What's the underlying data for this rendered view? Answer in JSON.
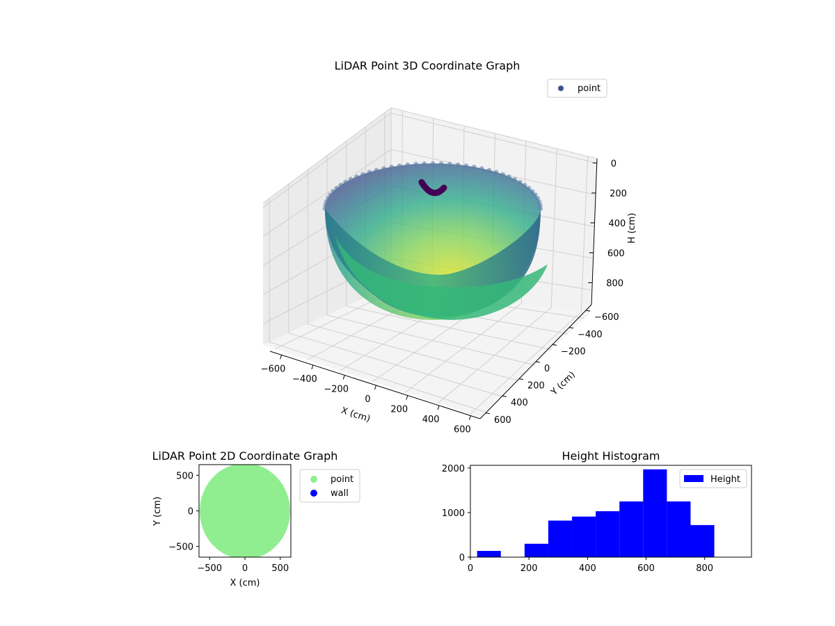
{
  "chart_data": [
    {
      "type": "scatter",
      "projection": "3d",
      "title": "LiDAR Point 3D Coordinate Graph",
      "xlabel": "X (cm)",
      "ylabel": "Y (cm)",
      "zlabel": "H (cm)",
      "xlim": [
        -650,
        650
      ],
      "ylim": [
        -650,
        650
      ],
      "zlim": [
        950,
        0
      ],
      "z_inverted": true,
      "xticks": [
        "−600",
        "−400",
        "−200",
        "0",
        "200",
        "400",
        "600"
      ],
      "yticks": [
        "−600",
        "−400",
        "−200",
        "0",
        "200",
        "400",
        "600"
      ],
      "zticks": [
        "0",
        "200",
        "400",
        "600",
        "800"
      ],
      "colormap": "viridis",
      "legend": {
        "entries": [
          "point"
        ],
        "placement": "top-right",
        "marker_color": "#3b528b"
      },
      "grid": true,
      "shape": "hemispherical bowl of points (radius ≈ 600 cm, depth ≈ 800 cm) with a small dark arc near the top rim"
    },
    {
      "type": "scatter",
      "title": "LiDAR Point 2D Coordinate Graph",
      "xlabel": "X (cm)",
      "ylabel": "Y (cm)",
      "xlim": [
        -650,
        650
      ],
      "ylim": [
        -650,
        650
      ],
      "xticks": [
        "−500",
        "0",
        "500"
      ],
      "yticks": [
        "−500",
        "0",
        "500"
      ],
      "series": [
        {
          "name": "point",
          "color": "#90ee90",
          "shape": "filled disk",
          "center": [
            0,
            0
          ],
          "radius_x": 640,
          "radius_y": 680
        },
        {
          "name": "wall",
          "color": "#0000ff",
          "points": []
        }
      ],
      "legend": {
        "placement": "outside-right"
      },
      "grid": false
    },
    {
      "type": "bar",
      "subtype": "histogram",
      "title": "Height Histogram",
      "xlim": [
        0,
        960
      ],
      "ylim": [
        0,
        2060
      ],
      "xticks": [
        "0",
        "200",
        "400",
        "600",
        "800"
      ],
      "yticks": [
        "0",
        "1000",
        "2000"
      ],
      "bin_edges": [
        23,
        104,
        185,
        266,
        347,
        428,
        509,
        590,
        671,
        752,
        833
      ],
      "values": [
        140,
        0,
        300,
        820,
        910,
        1030,
        1250,
        1970,
        1250,
        720
      ],
      "series": [
        {
          "name": "Height",
          "color": "#0000ff"
        }
      ],
      "legend": {
        "placement": "top-right"
      },
      "grid": false
    }
  ]
}
